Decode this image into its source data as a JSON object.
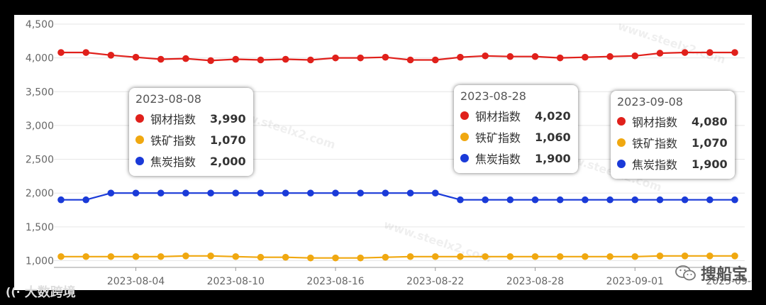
{
  "chart_data": {
    "type": "line",
    "x": [
      "2023-08-01",
      "2023-08-02",
      "2023-08-03",
      "2023-08-04",
      "2023-08-07",
      "2023-08-08",
      "2023-08-09",
      "2023-08-10",
      "2023-08-11",
      "2023-08-14",
      "2023-08-15",
      "2023-08-16",
      "2023-08-17",
      "2023-08-18",
      "2023-08-21",
      "2023-08-22",
      "2023-08-23",
      "2023-08-24",
      "2023-08-25",
      "2023-08-28",
      "2023-08-29",
      "2023-08-30",
      "2023-08-31",
      "2023-09-01",
      "2023-09-04",
      "2023-09-05",
      "2023-09-06",
      "2023-09-07"
    ],
    "x_tick_labels": [
      "2023-08-04",
      "2023-08-10",
      "2023-08-16",
      "2023-08-22",
      "2023-08-28",
      "2023-09-01",
      "2023-09-07"
    ],
    "y_ticks": [
      "1,000",
      "1,500",
      "2,000",
      "2,500",
      "3,000",
      "3,500",
      "4,000",
      "4,500"
    ],
    "ylim": [
      900,
      4500
    ],
    "grid": true,
    "series": [
      {
        "name": "钢材指数",
        "color": "#e0201b",
        "values": [
          4080,
          4080,
          4040,
          4010,
          3980,
          3990,
          3960,
          3980,
          3970,
          3980,
          3970,
          4000,
          4000,
          4010,
          3970,
          3970,
          4010,
          4030,
          4020,
          4020,
          4000,
          4010,
          4020,
          4030,
          4070,
          4080,
          4080,
          4080
        ]
      },
      {
        "name": "铁矿指数",
        "color": "#f0a810",
        "values": [
          1060,
          1060,
          1060,
          1060,
          1060,
          1070,
          1070,
          1060,
          1050,
          1050,
          1040,
          1040,
          1040,
          1050,
          1060,
          1060,
          1060,
          1060,
          1060,
          1060,
          1060,
          1060,
          1060,
          1060,
          1070,
          1070,
          1070,
          1070
        ]
      },
      {
        "name": "焦炭指数",
        "color": "#1a3ad8",
        "values": [
          1900,
          1900,
          2000,
          2000,
          2000,
          2000,
          2000,
          2000,
          2000,
          2000,
          2000,
          2000,
          2000,
          2000,
          2000,
          2000,
          1900,
          1900,
          1900,
          1900,
          1900,
          1900,
          1900,
          1900,
          1900,
          1900,
          1900,
          1900
        ]
      }
    ]
  },
  "tooltips": [
    {
      "date": "2023-08-08",
      "rows": [
        {
          "name": "钢材指数",
          "value": "3,990",
          "color": "#e0201b"
        },
        {
          "name": "铁矿指数",
          "value": "1,070",
          "color": "#f0a810"
        },
        {
          "name": "焦炭指数",
          "value": "2,000",
          "color": "#1a3ad8"
        }
      ]
    },
    {
      "date": "2023-08-28",
      "rows": [
        {
          "name": "钢材指数",
          "value": "4,020",
          "color": "#e0201b"
        },
        {
          "name": "铁矿指数",
          "value": "1,060",
          "color": "#f0a810"
        },
        {
          "name": "焦炭指数",
          "value": "1,900",
          "color": "#1a3ad8"
        }
      ]
    },
    {
      "date": "2023-09-08",
      "rows": [
        {
          "name": "钢材指数",
          "value": "4,080",
          "color": "#e0201b"
        },
        {
          "name": "铁矿指数",
          "value": "1,070",
          "color": "#f0a810"
        },
        {
          "name": "焦炭指数",
          "value": "1,900",
          "color": "#1a3ad8"
        }
      ]
    }
  ],
  "watermark": "www.steelx2.com",
  "wechat_account": "搜船宝",
  "bottom_logo_text": "大数跨境"
}
